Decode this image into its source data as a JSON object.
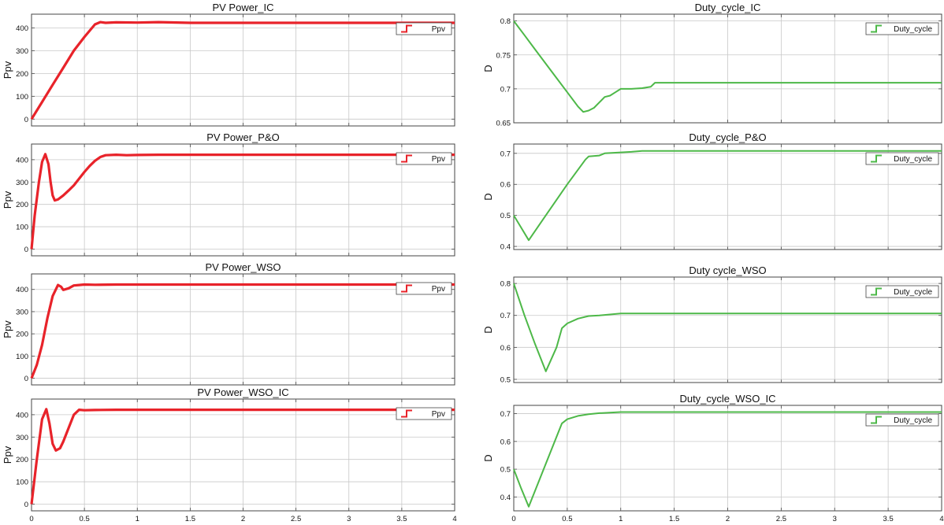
{
  "chart_data": [
    {
      "type": "line",
      "title": "PV Power_IC",
      "ylabel": "Ppv",
      "xlim": [
        0,
        4
      ],
      "ylim": [
        -30,
        460
      ],
      "yticks": [
        0,
        100,
        200,
        300,
        400
      ],
      "xticks": [
        0,
        0.5,
        1,
        1.5,
        2,
        2.5,
        3,
        3.5,
        4
      ],
      "legend": "top-right",
      "series": [
        {
          "name": "Ppv",
          "color": "#e8232a",
          "x": [
            0,
            0.1,
            0.2,
            0.3,
            0.4,
            0.5,
            0.6,
            0.65,
            0.7,
            0.8,
            1.0,
            1.2,
            1.5,
            2.0,
            2.5,
            3.0,
            3.5,
            4.0
          ],
          "y": [
            0,
            75,
            150,
            225,
            300,
            360,
            415,
            425,
            422,
            424,
            423,
            425,
            422,
            422,
            422,
            422,
            422,
            422
          ]
        }
      ]
    },
    {
      "type": "line",
      "title": "Duty_cycle_IC",
      "ylabel": "D",
      "xlim": [
        0,
        4
      ],
      "ylim": [
        0.65,
        0.81
      ],
      "yticks": [
        0.65,
        0.7,
        0.75,
        0.8
      ],
      "xticks": [
        0,
        0.5,
        1,
        1.5,
        2,
        2.5,
        3,
        3.5,
        4
      ],
      "legend": "top-right",
      "series": [
        {
          "name": "Duty_cycle",
          "color": "#4db848",
          "x": [
            0,
            0.1,
            0.2,
            0.3,
            0.4,
            0.5,
            0.6,
            0.65,
            0.7,
            0.75,
            0.8,
            0.85,
            0.9,
            0.95,
            1.0,
            1.1,
            1.2,
            1.28,
            1.32,
            1.5,
            2.0,
            2.5,
            3.0,
            3.5,
            4.0
          ],
          "y": [
            0.8,
            0.779,
            0.758,
            0.737,
            0.716,
            0.695,
            0.674,
            0.666,
            0.668,
            0.672,
            0.68,
            0.688,
            0.69,
            0.695,
            0.7,
            0.7,
            0.701,
            0.703,
            0.709,
            0.709,
            0.709,
            0.709,
            0.709,
            0.709,
            0.709
          ]
        }
      ]
    },
    {
      "type": "line",
      "title": "PV Power_P&O",
      "ylabel": "Ppv",
      "xlim": [
        0,
        4
      ],
      "ylim": [
        -30,
        470
      ],
      "yticks": [
        0,
        100,
        200,
        300,
        400
      ],
      "xticks": [
        0,
        0.5,
        1,
        1.5,
        2,
        2.5,
        3,
        3.5,
        4
      ],
      "legend": "top-right",
      "series": [
        {
          "name": "Ppv",
          "color": "#e8232a",
          "x": [
            0,
            0.03,
            0.07,
            0.1,
            0.13,
            0.16,
            0.18,
            0.2,
            0.22,
            0.25,
            0.3,
            0.35,
            0.4,
            0.45,
            0.5,
            0.55,
            0.6,
            0.65,
            0.7,
            0.8,
            0.9,
            1.0,
            1.2,
            1.5,
            2.0,
            2.5,
            3.0,
            3.5,
            4.0
          ],
          "y": [
            0,
            150,
            300,
            390,
            425,
            380,
            300,
            240,
            218,
            222,
            240,
            262,
            285,
            315,
            345,
            372,
            395,
            412,
            420,
            422,
            420,
            421,
            422,
            422,
            422,
            422,
            422,
            422,
            422
          ]
        }
      ]
    },
    {
      "type": "line",
      "title": "Duty_cycle_P&O",
      "ylabel": "D",
      "xlim": [
        0,
        4
      ],
      "ylim": [
        0.39,
        0.73
      ],
      "yticks": [
        0.4,
        0.5,
        0.6,
        0.7
      ],
      "xticks": [
        0,
        0.5,
        1,
        1.5,
        2,
        2.5,
        3,
        3.5,
        4
      ],
      "legend": "top-right",
      "series": [
        {
          "name": "Duty_cycle",
          "color": "#4db848",
          "x": [
            0,
            0.07,
            0.14,
            0.3,
            0.5,
            0.67,
            0.7,
            0.8,
            0.85,
            1.0,
            1.1,
            1.2,
            1.5,
            2.0,
            2.5,
            3.0,
            3.5,
            4.0
          ],
          "y": [
            0.5,
            0.46,
            0.42,
            0.5,
            0.6,
            0.68,
            0.69,
            0.693,
            0.7,
            0.703,
            0.705,
            0.708,
            0.708,
            0.708,
            0.708,
            0.708,
            0.708,
            0.708
          ]
        }
      ]
    },
    {
      "type": "line",
      "title": "PV Power_WSO",
      "ylabel": "Ppv",
      "xlim": [
        0,
        4
      ],
      "ylim": [
        -30,
        470
      ],
      "yticks": [
        0,
        100,
        200,
        300,
        400
      ],
      "xticks": [
        0,
        0.5,
        1,
        1.5,
        2,
        2.5,
        3,
        3.5,
        4
      ],
      "legend": "top-right",
      "series": [
        {
          "name": "Ppv",
          "color": "#e8232a",
          "x": [
            0,
            0.05,
            0.1,
            0.15,
            0.2,
            0.25,
            0.28,
            0.3,
            0.35,
            0.4,
            0.45,
            0.5,
            0.6,
            0.8,
            1.0,
            1.5,
            2.0,
            2.5,
            3.0,
            3.5,
            4.0
          ],
          "y": [
            0,
            60,
            150,
            270,
            370,
            420,
            412,
            398,
            405,
            418,
            420,
            422,
            421,
            422,
            422,
            422,
            422,
            422,
            422,
            422,
            422
          ]
        }
      ]
    },
    {
      "type": "line",
      "title": "Duty cycle_WSO",
      "ylabel": "D",
      "xlim": [
        0,
        4
      ],
      "ylim": [
        0.49,
        0.82
      ],
      "yticks": [
        0.5,
        0.6,
        0.7,
        0.8
      ],
      "xticks": [
        0,
        0.5,
        1,
        1.5,
        2,
        2.5,
        3,
        3.5,
        4
      ],
      "legend": "top-right",
      "series": [
        {
          "name": "Duty_cycle",
          "color": "#4db848",
          "x": [
            0,
            0.05,
            0.1,
            0.2,
            0.3,
            0.4,
            0.45,
            0.5,
            0.6,
            0.7,
            0.8,
            1.0,
            1.5,
            2.0,
            2.5,
            3.0,
            3.5,
            4.0
          ],
          "y": [
            0.8,
            0.75,
            0.7,
            0.61,
            0.525,
            0.6,
            0.66,
            0.675,
            0.69,
            0.698,
            0.7,
            0.706,
            0.706,
            0.706,
            0.706,
            0.706,
            0.706,
            0.706
          ]
        }
      ]
    },
    {
      "type": "line",
      "title": "PV Power_WSO_IC",
      "ylabel": "Ppv",
      "xlim": [
        0,
        4
      ],
      "ylim": [
        -30,
        470
      ],
      "yticks": [
        0,
        100,
        200,
        300,
        400
      ],
      "xticks": [
        0,
        0.5,
        1,
        1.5,
        2,
        2.5,
        3,
        3.5,
        4
      ],
      "legend": "top-right",
      "series": [
        {
          "name": "Ppv",
          "color": "#e8232a",
          "x": [
            0,
            0.05,
            0.1,
            0.14,
            0.17,
            0.2,
            0.23,
            0.27,
            0.3,
            0.35,
            0.4,
            0.45,
            0.5,
            0.6,
            0.8,
            1.0,
            1.5,
            2.0,
            2.5,
            3.0,
            3.5,
            4.0
          ],
          "y": [
            0,
            200,
            380,
            425,
            360,
            270,
            240,
            250,
            280,
            340,
            400,
            422,
            420,
            421,
            422,
            422,
            422,
            422,
            422,
            422,
            422,
            422
          ]
        }
      ]
    },
    {
      "type": "line",
      "title": "Duty_cycle_WSO_IC",
      "ylabel": "D",
      "xlim": [
        0,
        4
      ],
      "ylim": [
        0.35,
        0.73
      ],
      "yticks": [
        0.4,
        0.5,
        0.6,
        0.7
      ],
      "xticks": [
        0,
        0.5,
        1,
        1.5,
        2,
        2.5,
        3,
        3.5,
        4
      ],
      "legend": "top-right",
      "series": [
        {
          "name": "Duty_cycle",
          "color": "#4db848",
          "x": [
            0,
            0.07,
            0.14,
            0.3,
            0.45,
            0.5,
            0.6,
            0.7,
            0.8,
            1.0,
            1.5,
            2.0,
            2.5,
            3.0,
            3.5,
            4.0
          ],
          "y": [
            0.5,
            0.43,
            0.365,
            0.52,
            0.665,
            0.68,
            0.692,
            0.698,
            0.702,
            0.706,
            0.706,
            0.706,
            0.706,
            0.706,
            0.706,
            0.706
          ]
        }
      ]
    }
  ]
}
